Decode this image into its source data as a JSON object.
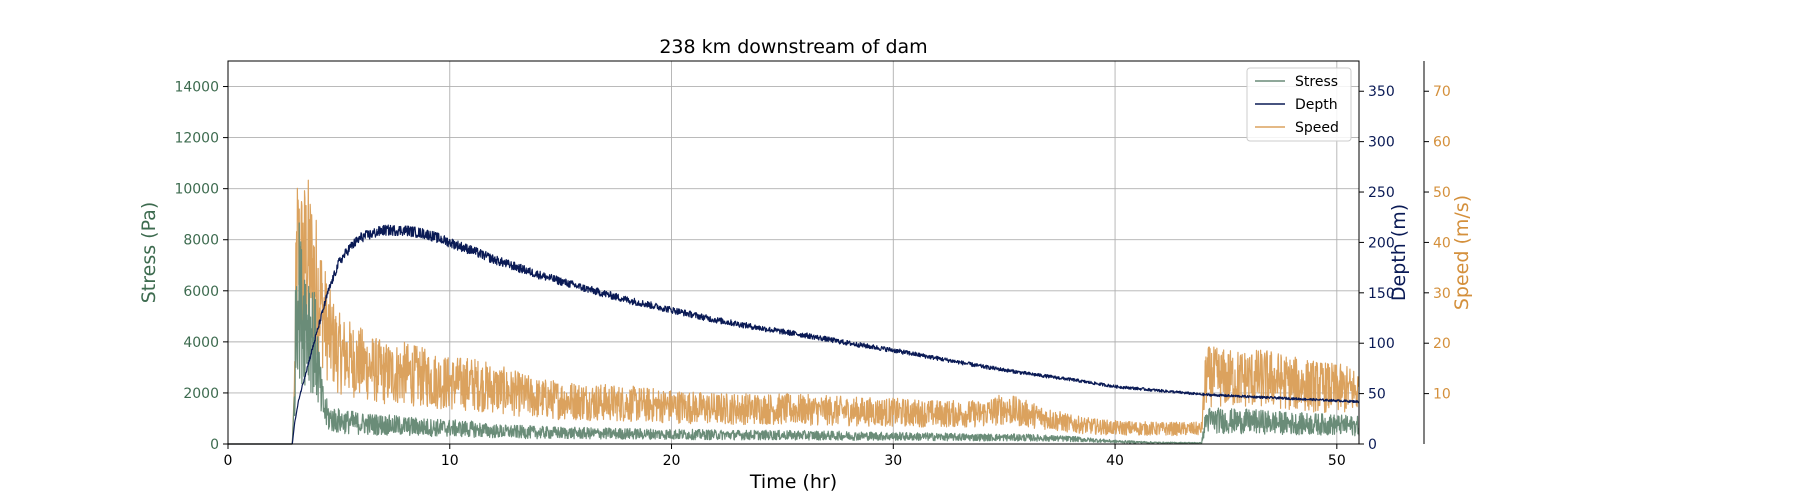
{
  "chart_data": {
    "type": "line",
    "title": "238 km downstream of dam",
    "xlabel": "Time (hr)",
    "xlim": [
      0,
      51
    ],
    "x_ticks": [
      0,
      10,
      20,
      30,
      40,
      50
    ],
    "grid": true,
    "legend_position": "top-right",
    "axes": [
      {
        "id": "stress",
        "label": "Stress (Pa)",
        "side": "left",
        "ylim": [
          0,
          15000
        ],
        "ticks": [
          0,
          2000,
          4000,
          6000,
          8000,
          10000,
          12000,
          14000
        ],
        "color": "#3d6b4f"
      },
      {
        "id": "depth",
        "label": "Depth (m)",
        "side": "right",
        "ylim": [
          0,
          380
        ],
        "ticks": [
          0,
          50,
          100,
          150,
          200,
          250,
          300,
          350
        ],
        "color": "#0a1a55"
      },
      {
        "id": "speed",
        "label": "Speed (m/s)",
        "side": "right-offset",
        "ylim": [
          0,
          76
        ],
        "ticks": [
          10,
          20,
          30,
          40,
          50,
          60,
          70
        ],
        "color": "#d4903c"
      }
    ],
    "series": [
      {
        "name": "Stress",
        "axis": "stress",
        "color": "#6a8c78",
        "x": [
          0,
          2.9,
          3.0,
          3.1,
          3.3,
          3.6,
          4.0,
          4.2,
          4.4,
          4.6,
          5,
          6,
          7,
          8,
          9,
          10,
          11,
          12,
          14,
          16,
          18,
          20,
          22,
          24,
          26,
          28,
          30,
          32,
          34,
          36,
          38,
          40,
          42,
          43.9,
          44.1,
          45,
          46,
          47,
          48,
          49,
          50,
          51
        ],
        "values": [
          0,
          0,
          2000,
          6500,
          5200,
          5000,
          3500,
          1800,
          1200,
          1000,
          900,
          800,
          750,
          700,
          650,
          620,
          580,
          500,
          450,
          420,
          400,
          380,
          360,
          350,
          340,
          320,
          300,
          280,
          260,
          250,
          200,
          100,
          50,
          40,
          950,
          900,
          880,
          850,
          800,
          780,
          750,
          700
        ],
        "noise": 0.55
      },
      {
        "name": "Depth",
        "axis": "depth",
        "color": "#0a1a55",
        "x": [
          0,
          2.9,
          3.0,
          3.2,
          3.5,
          4.0,
          4.5,
          5,
          5.5,
          6,
          7,
          8,
          9,
          10,
          11,
          12,
          14,
          16,
          18,
          20,
          22,
          24,
          26,
          28,
          30,
          32,
          34,
          36,
          38,
          40,
          42,
          44,
          46,
          48,
          50,
          51
        ],
        "values": [
          0,
          0,
          20,
          45,
          70,
          110,
          150,
          180,
          195,
          205,
          212,
          212,
          208,
          200,
          192,
          183,
          168,
          155,
          143,
          133,
          123,
          115,
          108,
          100,
          93,
          85,
          77,
          70,
          64,
          57,
          53,
          49,
          47,
          45,
          43,
          42
        ],
        "noise": 0.025
      },
      {
        "name": "Speed",
        "axis": "speed",
        "color": "#dba25e",
        "x": [
          0,
          2.9,
          3.0,
          3.1,
          3.3,
          3.6,
          3.9,
          4.2,
          4.5,
          5,
          6,
          7,
          8,
          9,
          10,
          11,
          12,
          13,
          14,
          16,
          18,
          20,
          22,
          24,
          26,
          28,
          30,
          32,
          34,
          35,
          36,
          37,
          38,
          39,
          40,
          42,
          43.9,
          44.1,
          45,
          46,
          47,
          48,
          49,
          50,
          51
        ],
        "values": [
          0,
          0,
          12,
          38,
          36,
          37,
          33,
          28,
          22,
          18,
          16,
          14,
          14,
          13,
          12,
          12,
          11,
          10,
          9,
          8.5,
          8,
          7.5,
          7,
          7,
          6.8,
          6.5,
          6.3,
          6,
          6,
          7,
          6,
          5,
          4,
          3.5,
          3.2,
          3,
          3,
          13.5,
          13,
          13,
          13,
          12,
          11.5,
          11,
          10.5
        ],
        "noise": 0.45
      }
    ]
  }
}
